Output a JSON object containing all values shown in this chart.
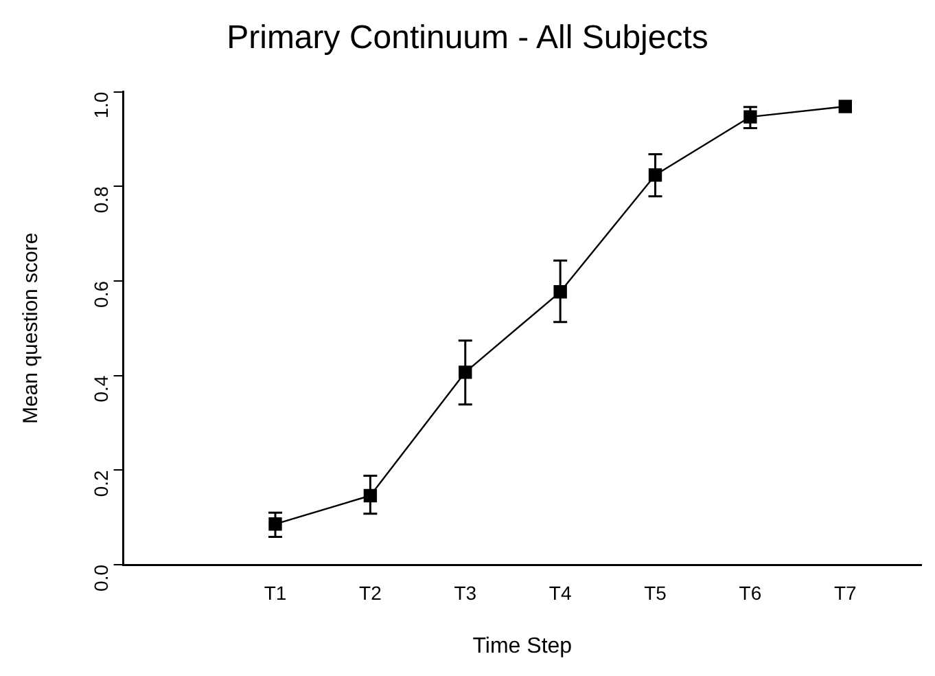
{
  "chart_data": {
    "type": "line",
    "title": "Primary Continuum - All Subjects",
    "xlabel": "Time Step",
    "ylabel": "Mean question score",
    "categories": [
      "T1",
      "T2",
      "T3",
      "T4",
      "T5",
      "T6",
      "T7"
    ],
    "series": [
      {
        "color": "#000000",
        "values": [
          0.086,
          0.146,
          0.407,
          0.577,
          0.824,
          0.947,
          0.969
        ],
        "errors": [
          [
            0.059,
            0.11
          ],
          [
            0.108,
            0.188
          ],
          [
            0.339,
            0.474
          ],
          [
            0.513,
            0.643
          ],
          [
            0.779,
            0.868
          ],
          [
            0.923,
            0.968
          ],
          null
        ]
      }
    ],
    "ylim": [
      0,
      1
    ],
    "yticks": [
      {
        "value": 0,
        "label": "0.0"
      },
      0.2,
      0.4,
      0.6,
      0.8,
      {
        "value": 1,
        "label": "1.0"
      }
    ],
    "marker": "square",
    "line_style": "solid",
    "grid": false,
    "legend": false
  }
}
